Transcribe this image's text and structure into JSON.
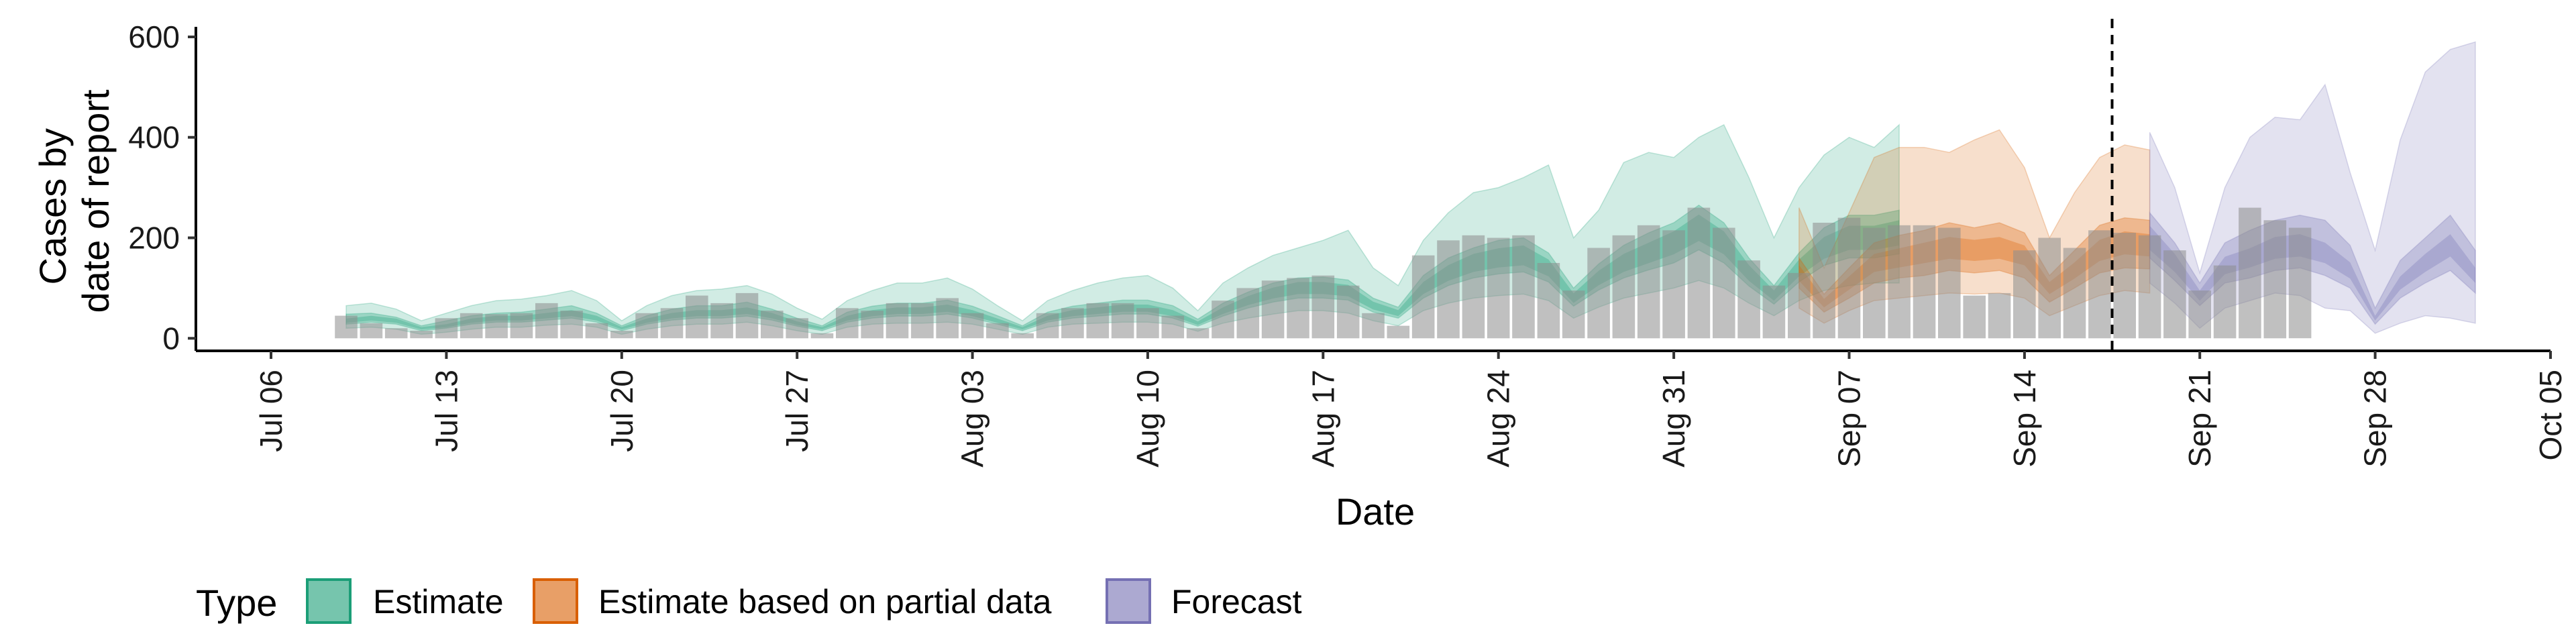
{
  "chart_data": {
    "type": "bar",
    "xlabel": "Date",
    "ylabel_lines": [
      "Cases by",
      "date of report"
    ],
    "x_ticks": [
      "Jul 06",
      "Jul 13",
      "Jul 20",
      "Jul 27",
      "Aug 03",
      "Aug 10",
      "Aug 17",
      "Aug 24",
      "Aug 31",
      "Sep 07",
      "Sep 14",
      "Sep 21",
      "Sep 28",
      "Oct 05"
    ],
    "x_range": [
      "2020-07-03",
      "2020-10-05"
    ],
    "y_ticks": [
      0,
      200,
      400,
      600
    ],
    "ylim": [
      -25,
      620
    ],
    "forecast_start": "2020-09-18",
    "reported_start": "2020-07-09",
    "reported_cases": [
      45,
      30,
      20,
      15,
      40,
      50,
      48,
      50,
      70,
      55,
      30,
      15,
      50,
      60,
      85,
      70,
      90,
      55,
      40,
      10,
      60,
      55,
      70,
      70,
      80,
      50,
      30,
      10,
      50,
      60,
      70,
      70,
      60,
      45,
      20,
      75,
      100,
      115,
      120,
      125,
      105,
      50,
      25,
      165,
      195,
      205,
      200,
      205,
      150,
      95,
      180,
      205,
      225,
      215,
      260,
      220,
      155,
      105,
      130,
      230,
      240,
      220,
      225,
      225,
      220,
      85,
      90,
      175,
      200,
      180,
      215,
      210,
      205,
      175,
      95,
      145,
      260,
      235,
      220
    ],
    "legend_title": "Type",
    "series": [
      {
        "name": "Estimate",
        "color": "#1b9e77",
        "start": "2020-07-09",
        "median": [
          35,
          40,
          35,
          20,
          25,
          35,
          40,
          40,
          45,
          50,
          40,
          20,
          35,
          45,
          50,
          50,
          55,
          45,
          30,
          20,
          40,
          50,
          55,
          55,
          60,
          50,
          35,
          20,
          40,
          50,
          55,
          60,
          60,
          50,
          30,
          55,
          75,
          90,
          100,
          100,
          95,
          65,
          50,
          100,
          130,
          150,
          160,
          165,
          140,
          80,
          120,
          150,
          170,
          190,
          220,
          190,
          130,
          85,
          140,
          180,
          200,
          200,
          210
        ],
        "inner": [
          [
            28,
            48
          ],
          [
            32,
            50
          ],
          [
            28,
            42
          ],
          [
            15,
            25
          ],
          [
            20,
            35
          ],
          [
            28,
            45
          ],
          [
            32,
            50
          ],
          [
            32,
            52
          ],
          [
            36,
            58
          ],
          [
            40,
            65
          ],
          [
            32,
            50
          ],
          [
            15,
            25
          ],
          [
            28,
            45
          ],
          [
            36,
            58
          ],
          [
            40,
            65
          ],
          [
            40,
            65
          ],
          [
            44,
            72
          ],
          [
            36,
            58
          ],
          [
            24,
            40
          ],
          [
            15,
            25
          ],
          [
            32,
            52
          ],
          [
            40,
            64
          ],
          [
            44,
            70
          ],
          [
            44,
            70
          ],
          [
            48,
            76
          ],
          [
            40,
            64
          ],
          [
            28,
            45
          ],
          [
            15,
            25
          ],
          [
            32,
            52
          ],
          [
            40,
            64
          ],
          [
            44,
            70
          ],
          [
            48,
            76
          ],
          [
            48,
            76
          ],
          [
            40,
            65
          ],
          [
            24,
            38
          ],
          [
            44,
            70
          ],
          [
            60,
            92
          ],
          [
            72,
            110
          ],
          [
            80,
            120
          ],
          [
            80,
            122
          ],
          [
            76,
            116
          ],
          [
            52,
            80
          ],
          [
            40,
            62
          ],
          [
            80,
            125
          ],
          [
            105,
            160
          ],
          [
            120,
            180
          ],
          [
            128,
            195
          ],
          [
            132,
            200
          ],
          [
            112,
            170
          ],
          [
            64,
            100
          ],
          [
            96,
            148
          ],
          [
            120,
            185
          ],
          [
            136,
            210
          ],
          [
            150,
            230
          ],
          [
            176,
            265
          ],
          [
            150,
            230
          ],
          [
            104,
            160
          ],
          [
            68,
            105
          ],
          [
            112,
            170
          ],
          [
            145,
            220
          ],
          [
            160,
            245
          ],
          [
            160,
            245
          ],
          [
            168,
            255
          ]
        ],
        "outer": [
          [
            20,
            65
          ],
          [
            22,
            70
          ],
          [
            18,
            58
          ],
          [
            8,
            35
          ],
          [
            12,
            50
          ],
          [
            18,
            65
          ],
          [
            22,
            75
          ],
          [
            22,
            78
          ],
          [
            26,
            85
          ],
          [
            28,
            95
          ],
          [
            22,
            75
          ],
          [
            8,
            35
          ],
          [
            18,
            65
          ],
          [
            25,
            85
          ],
          [
            28,
            95
          ],
          [
            28,
            98
          ],
          [
            32,
            105
          ],
          [
            25,
            88
          ],
          [
            15,
            60
          ],
          [
            8,
            38
          ],
          [
            22,
            75
          ],
          [
            28,
            95
          ],
          [
            30,
            110
          ],
          [
            30,
            110
          ],
          [
            32,
            120
          ],
          [
            28,
            98
          ],
          [
            18,
            65
          ],
          [
            8,
            35
          ],
          [
            22,
            75
          ],
          [
            28,
            95
          ],
          [
            30,
            110
          ],
          [
            32,
            120
          ],
          [
            32,
            125
          ],
          [
            28,
            100
          ],
          [
            14,
            55
          ],
          [
            30,
            110
          ],
          [
            40,
            140
          ],
          [
            48,
            165
          ],
          [
            55,
            180
          ],
          [
            55,
            195
          ],
          [
            50,
            215
          ],
          [
            35,
            140
          ],
          [
            25,
            105
          ],
          [
            55,
            195
          ],
          [
            70,
            250
          ],
          [
            80,
            290
          ],
          [
            85,
            300
          ],
          [
            88,
            320
          ],
          [
            75,
            345
          ],
          [
            40,
            200
          ],
          [
            62,
            255
          ],
          [
            80,
            350
          ],
          [
            90,
            370
          ],
          [
            100,
            360
          ],
          [
            115,
            400
          ],
          [
            100,
            425
          ],
          [
            70,
            320
          ],
          [
            45,
            200
          ],
          [
            75,
            300
          ],
          [
            95,
            365
          ],
          [
            105,
            400
          ],
          [
            110,
            380
          ],
          [
            110,
            425
          ]
        ]
      },
      {
        "name": "Estimate based on partial data",
        "color": "#d95f02",
        "start": "2020-09-05",
        "median": [
          130,
          70,
          110,
          150,
          160,
          170,
          180,
          175,
          180,
          165,
          100,
          135,
          175,
          190,
          185
        ],
        "inner": [
          [
            100,
            160
          ],
          [
            52,
            88
          ],
          [
            80,
            140
          ],
          [
            110,
            190
          ],
          [
            120,
            205
          ],
          [
            125,
            215
          ],
          [
            135,
            230
          ],
          [
            130,
            220
          ],
          [
            135,
            230
          ],
          [
            120,
            210
          ],
          [
            72,
            125
          ],
          [
            100,
            175
          ],
          [
            130,
            225
          ],
          [
            140,
            240
          ],
          [
            138,
            235
          ]
        ],
        "outer": [
          [
            60,
            260
          ],
          [
            30,
            140
          ],
          [
            55,
            250
          ],
          [
            75,
            360
          ],
          [
            80,
            380
          ],
          [
            85,
            380
          ],
          [
            90,
            370
          ],
          [
            88,
            395
          ],
          [
            90,
            415
          ],
          [
            80,
            340
          ],
          [
            45,
            200
          ],
          [
            65,
            290
          ],
          [
            85,
            360
          ],
          [
            95,
            385
          ],
          [
            90,
            375
          ]
        ]
      },
      {
        "name": "Forecast",
        "color": "#7570b3",
        "start": "2020-09-19",
        "median": [
          200,
          150,
          85,
          145,
          160,
          180,
          185,
          170,
          135,
          40,
          110,
          150,
          185,
          125
        ],
        "inner": [
          [
            160,
            250
          ],
          [
            115,
            190
          ],
          [
            65,
            110
          ],
          [
            110,
            190
          ],
          [
            120,
            215
          ],
          [
            135,
            235
          ],
          [
            140,
            245
          ],
          [
            125,
            235
          ],
          [
            100,
            185
          ],
          [
            28,
            60
          ],
          [
            80,
            155
          ],
          [
            110,
            200
          ],
          [
            135,
            245
          ],
          [
            90,
            175
          ]
        ],
        "outer": [
          [
            110,
            410
          ],
          [
            70,
            300
          ],
          [
            20,
            130
          ],
          [
            60,
            300
          ],
          [
            75,
            400
          ],
          [
            90,
            440
          ],
          [
            85,
            435
          ],
          [
            60,
            505
          ],
          [
            55,
            330
          ],
          [
            10,
            175
          ],
          [
            30,
            395
          ],
          [
            45,
            530
          ],
          [
            40,
            575
          ],
          [
            30,
            590
          ]
        ]
      }
    ]
  }
}
